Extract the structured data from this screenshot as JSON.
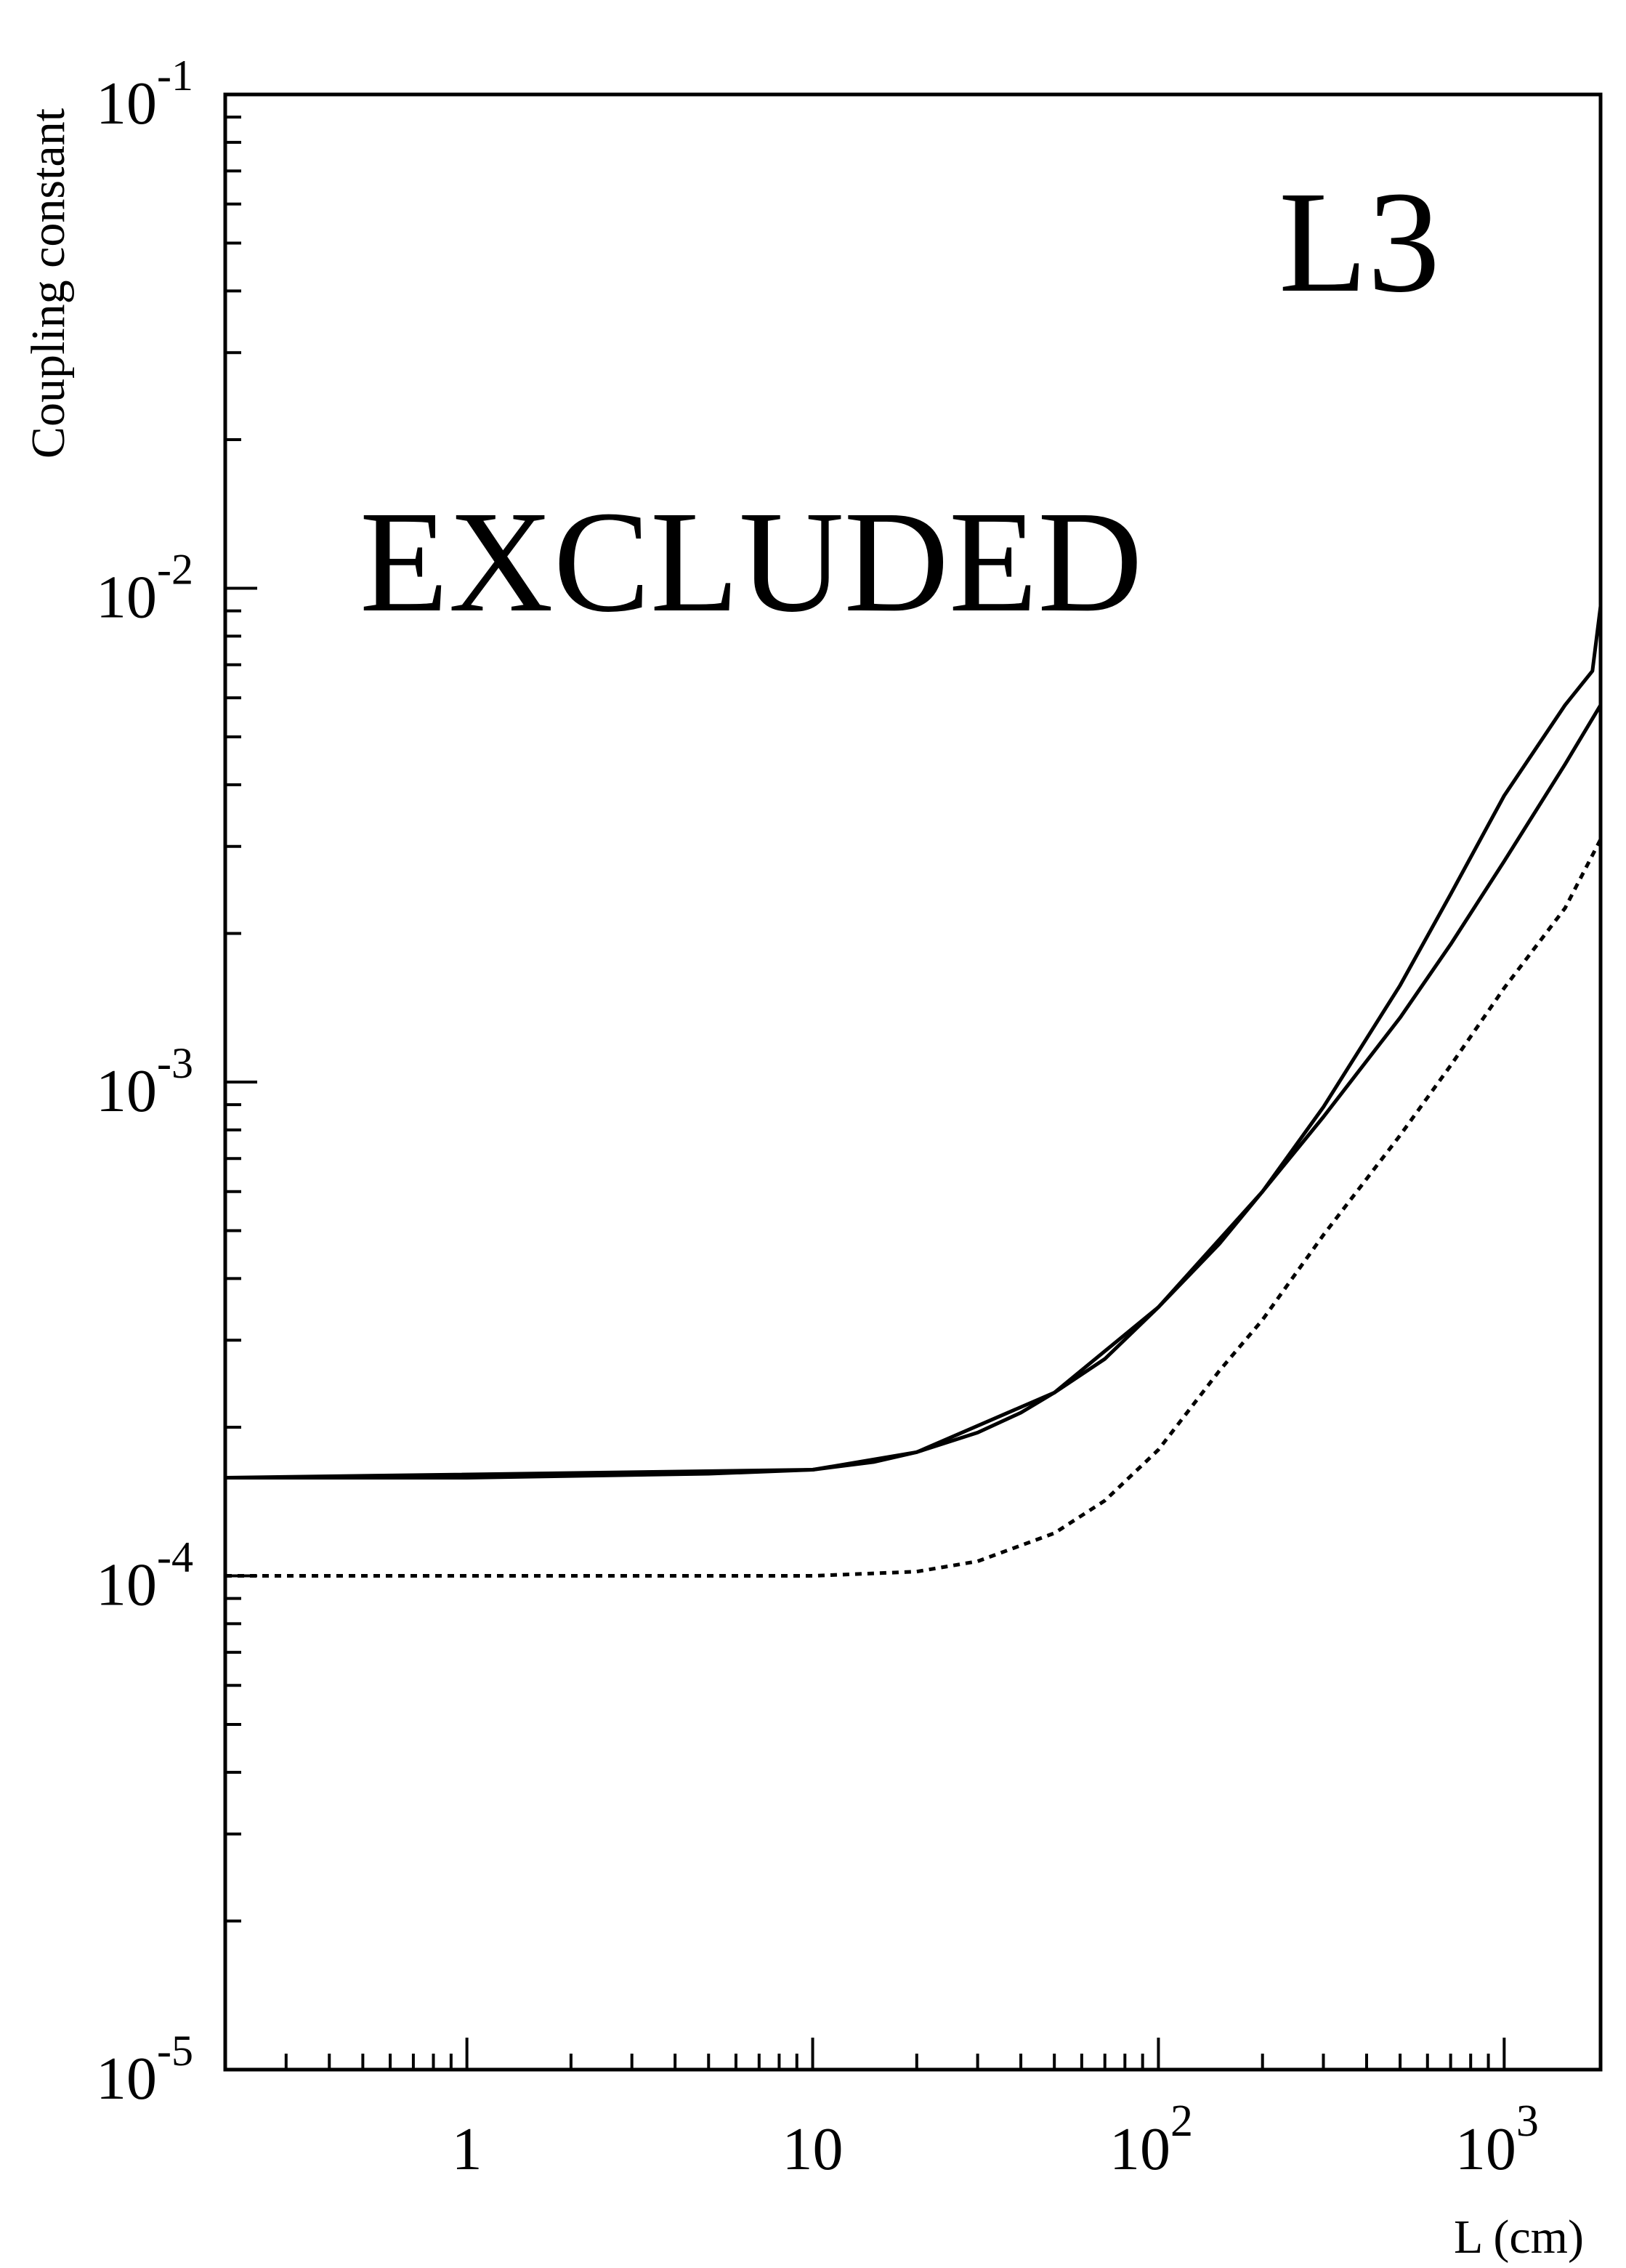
{
  "chart_data": {
    "type": "line",
    "title": "",
    "xlabel": "L (cm)",
    "ylabel": "Coupling constant",
    "x_scale": "log",
    "y_scale": "log",
    "xlim": [
      0.2,
      1900
    ],
    "ylim": [
      1e-05,
      0.1
    ],
    "x_ticks": [
      {
        "value": 1,
        "base": "1",
        "exp": ""
      },
      {
        "value": 10,
        "base": "10",
        "exp": ""
      },
      {
        "value": 100,
        "base": "10",
        "exp": "2"
      },
      {
        "value": 1000,
        "base": "10",
        "exp": "3"
      }
    ],
    "y_ticks": [
      {
        "value": 0.1,
        "base": "10",
        "exp": "-1"
      },
      {
        "value": 0.01,
        "base": "10",
        "exp": "-2"
      },
      {
        "value": 0.001,
        "base": "10",
        "exp": "-3"
      },
      {
        "value": 0.0001,
        "base": "10",
        "exp": "-4"
      },
      {
        "value": 1e-05,
        "base": "10",
        "exp": "-5"
      }
    ],
    "grid": false,
    "annotations": [
      "L3",
      "EXCLUDED"
    ],
    "series": [
      {
        "style": "solid",
        "x": [
          0.2,
          1,
          5,
          10,
          15,
          20,
          30,
          40,
          50,
          70,
          100,
          150,
          200,
          300,
          500,
          700,
          1000,
          1500,
          1900
        ],
        "y": [
          0.000158,
          0.000158,
          0.000161,
          0.000164,
          0.00017,
          0.000178,
          0.000195,
          0.000214,
          0.000235,
          0.000275,
          0.00035,
          0.00047,
          0.0006,
          0.00085,
          0.00135,
          0.0019,
          0.0028,
          0.0044,
          0.0058
        ]
      },
      {
        "style": "solid",
        "x": [
          0.2,
          10,
          20,
          50,
          100,
          200,
          300,
          500,
          700,
          1000,
          1500,
          1800,
          1900
        ],
        "y": [
          0.000158,
          0.000164,
          0.000178,
          0.000235,
          0.00035,
          0.0006,
          0.00089,
          0.00157,
          0.0024,
          0.0038,
          0.0058,
          0.0068,
          0.0092
        ]
      },
      {
        "style": "dashed",
        "x": [
          0.2,
          1,
          10,
          20,
          30,
          50,
          70,
          100,
          150,
          200,
          300,
          500,
          700,
          1000,
          1500,
          1900
        ],
        "y": [
          0.0001,
          0.0001,
          0.0001,
          0.000102,
          0.000107,
          0.000122,
          0.000142,
          0.00018,
          0.00026,
          0.00033,
          0.00049,
          0.00078,
          0.00108,
          0.00155,
          0.00225,
          0.0031
        ]
      }
    ]
  }
}
